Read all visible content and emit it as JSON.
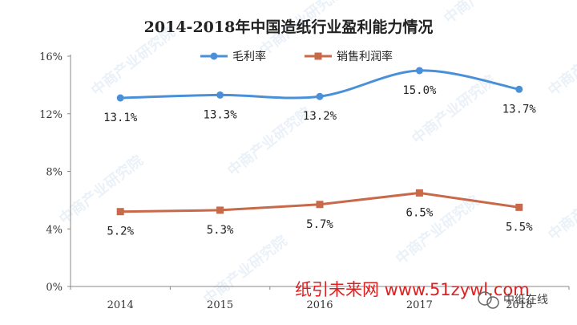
{
  "chart_data": {
    "type": "line",
    "title": "2014-2018年中国造纸行业盈利能力情况",
    "categories": [
      "2014",
      "2015",
      "2016",
      "2017",
      "2018"
    ],
    "ylim": [
      0,
      16
    ],
    "yticks": [
      "0%",
      "4%",
      "8%",
      "12%",
      "16%"
    ],
    "grid": false,
    "legend_position": "top",
    "series": [
      {
        "name": "毛利率",
        "values": [
          13.1,
          13.3,
          13.2,
          15.0,
          13.7
        ],
        "labels": [
          "13.1%",
          "13.3%",
          "13.2%",
          "15.0%",
          "13.7%"
        ],
        "color": "#4a90d9",
        "marker": "circle",
        "smooth": true
      },
      {
        "name": "销售利润率",
        "values": [
          5.2,
          5.3,
          5.7,
          6.5,
          5.5
        ],
        "labels": [
          "5.2%",
          "5.3%",
          "5.7%",
          "6.5%",
          "5.5%"
        ],
        "color": "#c8694a",
        "marker": "square",
        "smooth": false
      }
    ]
  },
  "watermark": {
    "text": "中商产业研究院"
  },
  "footer": {
    "source_text": "纸引未来网 www.51zywl.com",
    "badge_text": "中纸在线",
    "badge_icon": "wechat-icon"
  },
  "colors": {
    "axis": "#888888",
    "source_text": "#e02020"
  }
}
